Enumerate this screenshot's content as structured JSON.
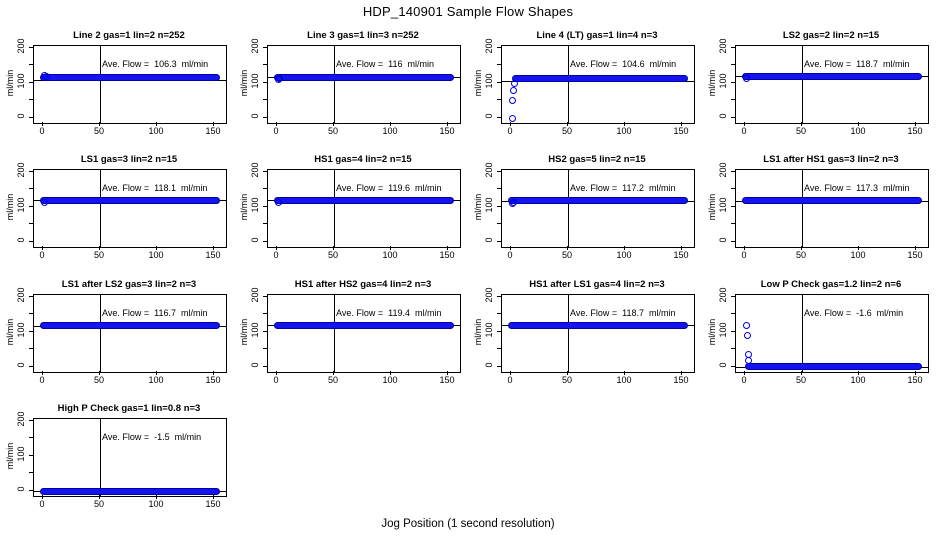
{
  "page": {
    "title": "HDP_140901  Sample Flow Shapes",
    "xlabel": "Jog Position (1 second resolution)",
    "ylabel": "ml/min"
  },
  "colors": {
    "point_fill": "#1414f0",
    "point_edge": "#0000a0",
    "axis": "#000000",
    "background": "#ffffff"
  },
  "chart_data": {
    "type": "scatter",
    "title": "HDP_140901  Sample Flow Shapes",
    "xlabel": "Jog Position (1 second resolution)",
    "ylabel": "ml/min",
    "x_ticks": [
      0,
      50,
      100,
      150
    ],
    "y_ticks": [
      0,
      50,
      100,
      150,
      200
    ],
    "y_labeled_ticks": [
      0,
      100,
      200
    ],
    "xlim": [
      -8,
      160
    ],
    "ylim": [
      -14,
      206
    ],
    "vline_x": 50,
    "x_data_range": [
      0,
      152
    ],
    "grid_layout": "4x4, 13 panels",
    "legend_position": "none",
    "plots": [
      {
        "title": "Line 2 gas=1 lin=2 n=252",
        "ave_flow": 106.3,
        "ave_label": "Ave. Flow =  106.3  ml/min",
        "steady_flow": 117,
        "hline_y": 106.3,
        "band_x": [
          0,
          152
        ],
        "extra_points": [
          [
            1,
            123
          ],
          [
            3,
            120
          ]
        ]
      },
      {
        "title": "Line 3 gas=1 lin=3 n=252",
        "ave_flow": 116,
        "ave_label": "Ave. Flow =  116  ml/min",
        "steady_flow": 117,
        "hline_y": 116,
        "band_x": [
          0,
          152
        ],
        "extra_points": [
          [
            1,
            109
          ],
          [
            2,
            112
          ]
        ]
      },
      {
        "title": "Line 4 (LT) gas=1 lin=4 n=3",
        "ave_flow": 104.6,
        "ave_label": "Ave. Flow =  104.6  ml/min",
        "steady_flow": 112,
        "hline_y": 104.6,
        "band_x": [
          4,
          152
        ],
        "extra_points": [
          [
            1,
            -2
          ],
          [
            1.5,
            50
          ],
          [
            2,
            80
          ],
          [
            3,
            98
          ]
        ]
      },
      {
        "title": "LS2 gas=2 lin=2 n=15",
        "ave_flow": 118.7,
        "ave_label": "Ave. Flow =  118.7  ml/min",
        "steady_flow": 120,
        "hline_y": 118.7,
        "band_x": [
          0,
          152
        ],
        "extra_points": [
          [
            1,
            112
          ]
        ]
      },
      {
        "title": "LS1 gas=3 lin=2 n=15",
        "ave_flow": 118.1,
        "ave_label": "Ave. Flow =  118.1  ml/min",
        "steady_flow": 119,
        "hline_y": 118.1,
        "band_x": [
          0,
          152
        ],
        "extra_points": [
          [
            1,
            112
          ]
        ]
      },
      {
        "title": "HS1 gas=4 lin=2 n=15",
        "ave_flow": 119.6,
        "ave_label": "Ave. Flow =  119.6  ml/min",
        "steady_flow": 120,
        "hline_y": 119.6,
        "band_x": [
          0,
          152
        ],
        "extra_points": [
          [
            1,
            113
          ]
        ]
      },
      {
        "title": "HS2 gas=5 lin=2 n=15",
        "ave_flow": 117.2,
        "ave_label": "Ave. Flow =  117.2  ml/min",
        "steady_flow": 118,
        "hline_y": 117.2,
        "band_x": [
          0,
          152
        ],
        "extra_points": [
          [
            1,
            110
          ],
          [
            2,
            113
          ]
        ]
      },
      {
        "title": "LS1 after HS1 gas=3 lin=2 n=3",
        "ave_flow": 117.3,
        "ave_label": "Ave. Flow =  117.3  ml/min",
        "steady_flow": 118,
        "hline_y": 117.3,
        "band_x": [
          0,
          152
        ],
        "extra_points": []
      },
      {
        "title": "LS1 after LS2 gas=3 lin=2 n=3",
        "ave_flow": 116.7,
        "ave_label": "Ave. Flow =  116.7  ml/min",
        "steady_flow": 117.5,
        "hline_y": 116.7,
        "band_x": [
          0,
          152
        ],
        "extra_points": []
      },
      {
        "title": "HS1 after HS2 gas=4 lin=2 n=3",
        "ave_flow": 119.4,
        "ave_label": "Ave. Flow =  119.4  ml/min",
        "steady_flow": 120,
        "hline_y": 119.4,
        "band_x": [
          0,
          152
        ],
        "extra_points": []
      },
      {
        "title": "HS1 after LS1 gas=4 lin=2 n=3",
        "ave_flow": 118.7,
        "ave_label": "Ave. Flow =  118.7  ml/min",
        "steady_flow": 119.5,
        "hline_y": 118.7,
        "band_x": [
          0,
          152
        ],
        "extra_points": []
      },
      {
        "title": "Low P Check gas=1.2 lin=2 n=6",
        "ave_flow": -1.6,
        "ave_label": "Ave. Flow =  -1.6  ml/min",
        "steady_flow": 3,
        "hline_y": -1.6,
        "band_x": [
          3,
          152
        ],
        "extra_points": [
          [
            1,
            120
          ],
          [
            2,
            90
          ],
          [
            3,
            35
          ],
          [
            3.5,
            20
          ]
        ]
      },
      {
        "title": "High P Check gas=1 lin=0.8 n=3",
        "ave_flow": -1.5,
        "ave_label": "Ave. Flow =  -1.5  ml/min",
        "steady_flow": -2,
        "hline_y": -1.5,
        "band_x": [
          0,
          152
        ],
        "extra_points": []
      }
    ]
  }
}
